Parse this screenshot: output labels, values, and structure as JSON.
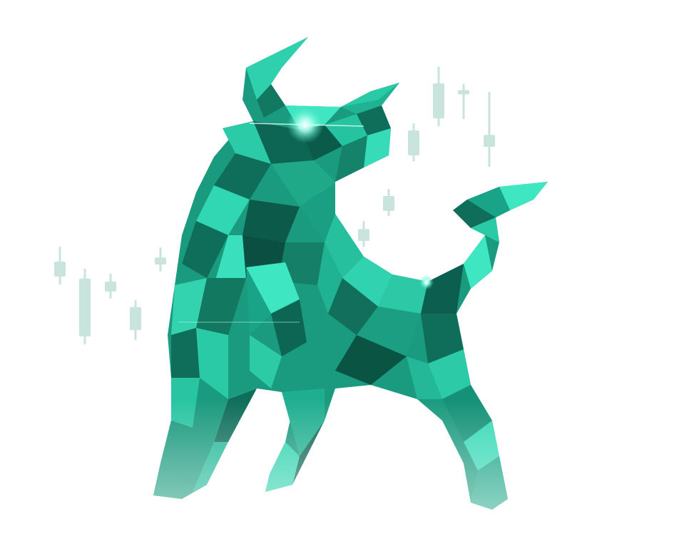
{
  "scene": {
    "subject": "bull-illustration",
    "background_color": "#ffffff",
    "bull_palette": {
      "light": "#3fe6c2",
      "mid": "#23b596",
      "dark": "#0f6e5a",
      "deep": "#0a4f41",
      "eye_glow": "#e8fffa"
    },
    "candlestick_color": "#c9e3dd",
    "candlesticks": [
      {
        "open": 45,
        "close": 30,
        "high": 60,
        "low": 22
      },
      {
        "open": 78,
        "close": 20,
        "high": 88,
        "low": 12
      },
      {
        "open": 25,
        "close": 15,
        "high": 33,
        "low": 8
      },
      {
        "open": 28,
        "close": 5,
        "high": 35,
        "low": -5
      },
      {
        "open": 42,
        "close": 35,
        "high": 52,
        "low": 28
      },
      {
        "open": 30,
        "close": 42,
        "high": 50,
        "low": 24
      },
      {
        "open": 60,
        "close": 75,
        "high": 82,
        "low": 55
      },
      {
        "open": 80,
        "close": 105,
        "high": 112,
        "low": 74
      },
      {
        "open": 110,
        "close": 145,
        "high": 162,
        "low": 102
      },
      {
        "open": 120,
        "close": 124,
        "high": 130,
        "low": 95
      },
      {
        "open": 60,
        "close": 72,
        "high": 115,
        "low": 40
      }
    ]
  }
}
